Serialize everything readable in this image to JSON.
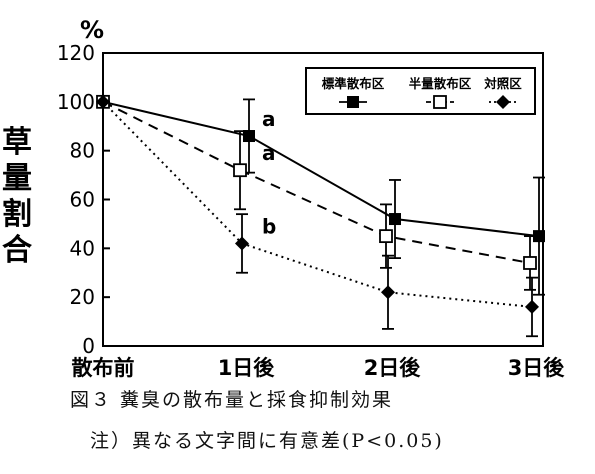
{
  "chart_data": {
    "type": "line",
    "unit_label": "%",
    "ylabel": "草量割合",
    "ylim": [
      0,
      120
    ],
    "yticks": [
      0,
      20,
      40,
      60,
      80,
      100,
      120
    ],
    "categories": [
      "散布前",
      "1日後",
      "2日後",
      "3日後"
    ],
    "legend_position": "top-right",
    "grid": false,
    "series": [
      {
        "name": "標準散布区",
        "values": [
          100,
          86,
          52,
          45
        ],
        "err": [
          0,
          15,
          16,
          24
        ],
        "marker": "filled-square",
        "line": "solid"
      },
      {
        "name": "半量散布区",
        "values": [
          100,
          72,
          45,
          34
        ],
        "err": [
          0,
          16,
          13,
          11
        ],
        "marker": "open-square",
        "line": "dashed"
      },
      {
        "name": "対照区",
        "values": [
          100,
          42,
          22,
          16
        ],
        "err": [
          0,
          12,
          15,
          12
        ],
        "marker": "filled-diamond",
        "line": "dotted"
      }
    ],
    "annotations": [
      {
        "category": "1日後",
        "y": 86,
        "text": "a"
      },
      {
        "category": "1日後",
        "y": 72,
        "text": "a"
      },
      {
        "category": "1日後",
        "y": 42,
        "text": "b"
      }
    ]
  },
  "caption": {
    "figure": "図３ 糞臭の散布量と採食抑制効果",
    "note": "注）異なる文字間に有意差(P<0.05)"
  }
}
